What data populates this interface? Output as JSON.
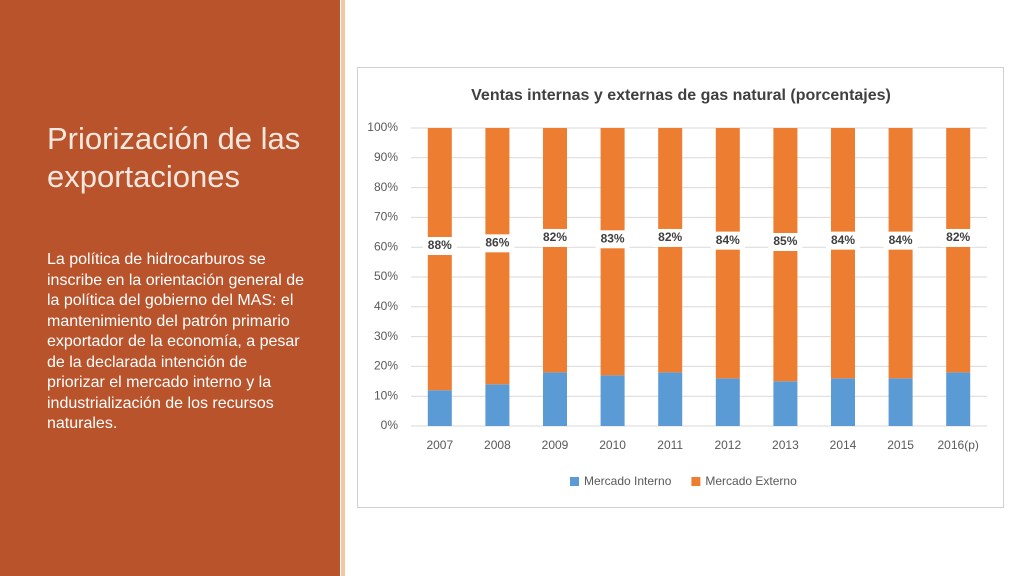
{
  "slide": {
    "title": "Priorización de las exportaciones",
    "body": "La política de hidrocarburos se inscribe en la orientación general de la política del gobierno del MAS: el mantenimiento del patrón primario exportador de la economía, a pesar de la declarada intención de priorizar el mercado interno y la industrialización de los recursos naturales."
  },
  "chart_data": {
    "type": "stacked_bar",
    "title": "Ventas internas y externas de gas natural (porcentajes)",
    "categories": [
      "2007",
      "2008",
      "2009",
      "2010",
      "2011",
      "2012",
      "2013",
      "2014",
      "2015",
      "2016(p)"
    ],
    "series": [
      {
        "name": "Mercado Interno",
        "color": "#5b9bd5",
        "values": [
          12,
          14,
          18,
          17,
          18,
          16,
          15,
          16,
          16,
          18
        ]
      },
      {
        "name": "Mercado Externo",
        "color": "#ed7d31",
        "values": [
          88,
          86,
          82,
          83,
          82,
          84,
          85,
          84,
          84,
          82
        ],
        "value_labels": [
          "88%",
          "86%",
          "82%",
          "83%",
          "82%",
          "84%",
          "85%",
          "84%",
          "84%",
          "82%"
        ]
      }
    ],
    "ylim": [
      0,
      100
    ],
    "yticks": [
      {
        "value": 0,
        "label": "0%"
      },
      {
        "value": 10,
        "label": "10%"
      },
      {
        "value": 20,
        "label": "20%"
      },
      {
        "value": 30,
        "label": "30%"
      },
      {
        "value": 40,
        "label": "40%"
      },
      {
        "value": 50,
        "label": "50%"
      },
      {
        "value": 60,
        "label": "60%"
      },
      {
        "value": 70,
        "label": "70%"
      },
      {
        "value": 80,
        "label": "80%"
      },
      {
        "value": 90,
        "label": "90%"
      },
      {
        "value": 100,
        "label": "100%"
      }
    ],
    "grid": true,
    "legend": "bottom"
  }
}
